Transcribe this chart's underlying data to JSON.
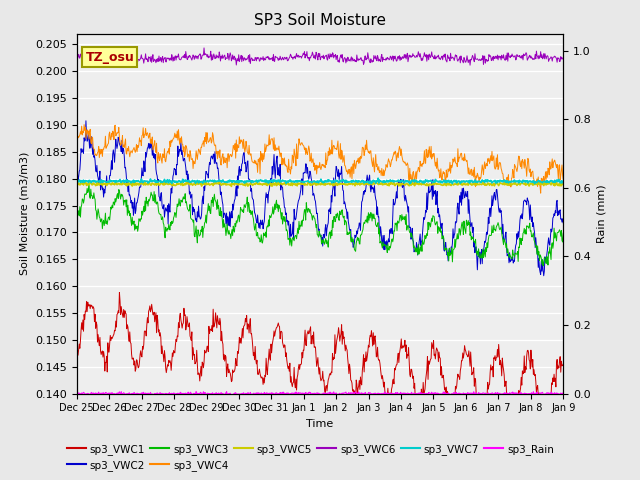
{
  "title": "SP3 Soil Moisture",
  "xlabel": "Time",
  "ylabel_left": "Soil Moisture (m3/m3)",
  "ylabel_right": "Rain (mm)",
  "tz_label": "TZ_osu",
  "n_days": 15.5,
  "ylim_left": [
    0.14,
    0.207
  ],
  "ylim_right": [
    0.0,
    1.05
  ],
  "yticks_left": [
    0.14,
    0.145,
    0.15,
    0.155,
    0.16,
    0.165,
    0.17,
    0.175,
    0.18,
    0.185,
    0.19,
    0.195,
    0.2,
    0.205
  ],
  "yticks_right": [
    0.0,
    0.2,
    0.4,
    0.6,
    0.8,
    1.0
  ],
  "xtick_labels": [
    "Dec 25",
    "Dec 26",
    "Dec 27",
    "Dec 28",
    "Dec 29",
    "Dec 30",
    "Dec 31",
    "Jan 1",
    "Jan 2",
    "Jan 3",
    "Jan 4",
    "Jan 5",
    "Jan 6",
    "Jan 7",
    "Jan 8",
    "Jan 9"
  ],
  "colors": {
    "VWC1": "#cc0000",
    "VWC2": "#0000cc",
    "VWC3": "#00bb00",
    "VWC4": "#ff8800",
    "VWC5": "#cccc00",
    "VWC6": "#9900bb",
    "VWC7": "#00cccc",
    "Rain": "#ff00ff"
  },
  "legend_labels": [
    "sp3_VWC1",
    "sp3_VWC2",
    "sp3_VWC3",
    "sp3_VWC4",
    "sp3_VWC5",
    "sp3_VWC6",
    "sp3_VWC7",
    "sp3_Rain"
  ],
  "background_color": "#e8e8e8",
  "axes_background": "#eeeeee",
  "grid_color": "#ffffff",
  "tz_text_color": "#aa0000",
  "tz_bg_color": "#ffff99",
  "tz_edge_color": "#999900"
}
